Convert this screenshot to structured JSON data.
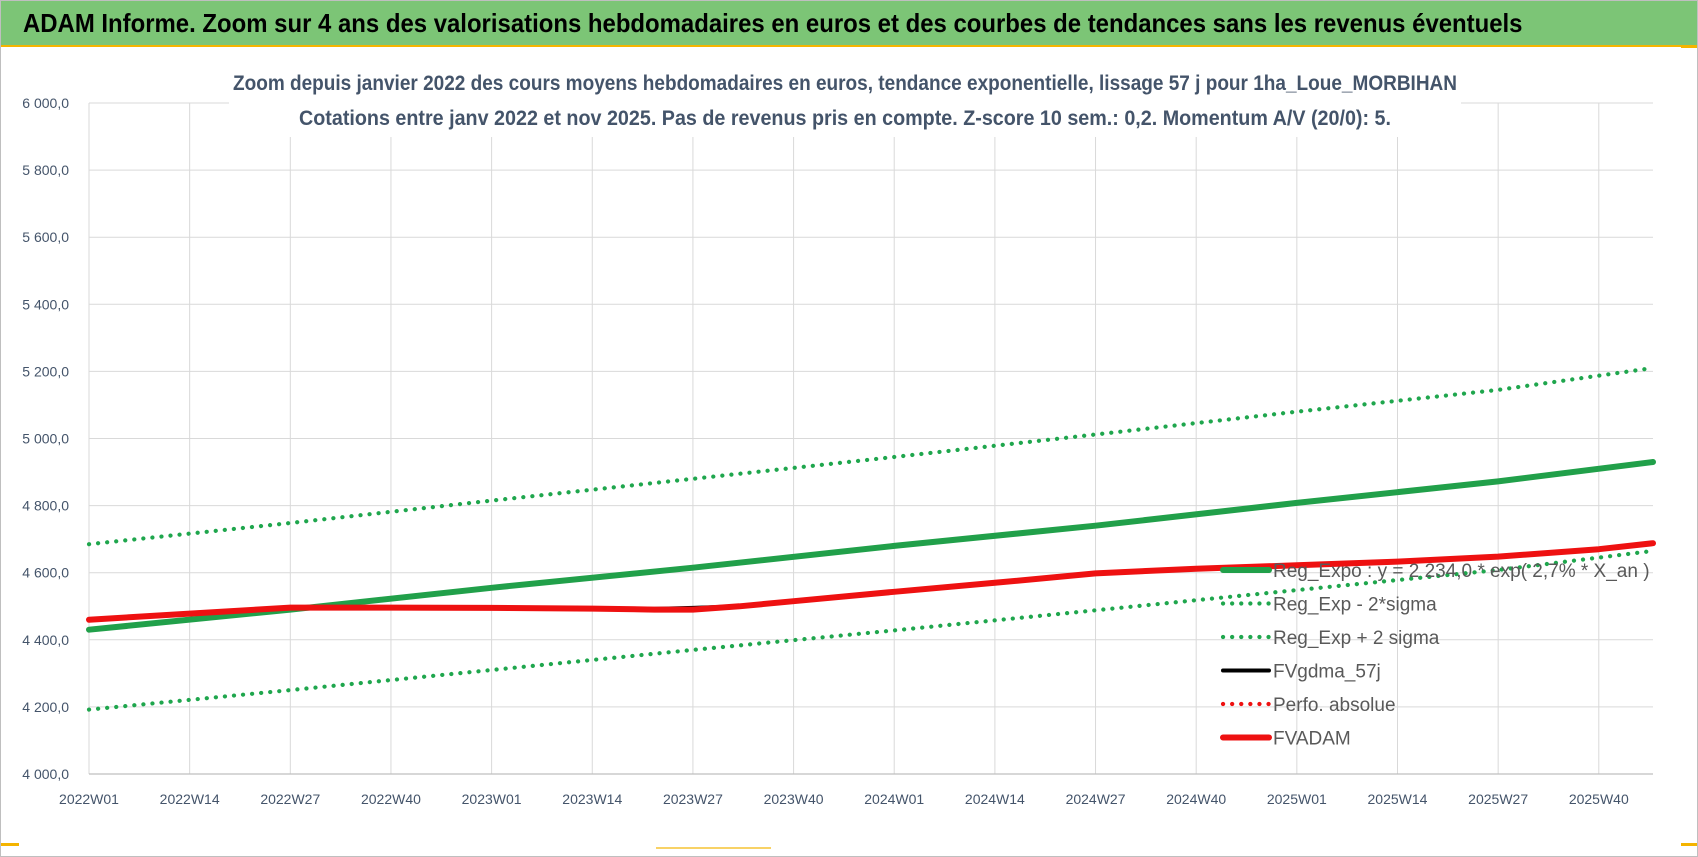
{
  "banner": {
    "title": "ADAM Informe. Zoom sur 4 ans des valorisations hebdomadaires en euros et des courbes de tendances sans les revenus éventuels"
  },
  "colors": {
    "banner_bg": "#7cc576",
    "accent": "#f4b400",
    "trend_green": "#21a04a",
    "dotted_green": "#1fa64d",
    "series_black": "#000000",
    "series_red": "#ee1111",
    "grid": "#d9d9d9",
    "text": "#44546a"
  },
  "chart_data": {
    "type": "line",
    "title": "Zoom depuis janvier 2022 des cours moyens hebdomadaires en euros, tendance exponentielle, lissage 57 j pour 1ha_Loue_MORBIHAN",
    "subtitle": "Cotations entre janv 2022 et nov 2025. Pas de revenus pris en compte. Z-score 10 sem.: 0,2. Momentum A/V (20/0): 5.",
    "xlabel": "",
    "ylabel": "",
    "x_ticks": [
      "2022W01",
      "2022W14",
      "2022W27",
      "2022W40",
      "2023W01",
      "2023W14",
      "2023W27",
      "2023W40",
      "2024W01",
      "2024W14",
      "2024W27",
      "2024W40",
      "2025W01",
      "2025W14",
      "2025W27",
      "2025W40"
    ],
    "y_ticks": [
      "4 000,0",
      "4 200,0",
      "4 400,0",
      "4 600,0",
      "4 800,0",
      "5 000,0",
      "5 200,0",
      "5 400,0",
      "5 600,0",
      "5 800,0",
      "6 000,0"
    ],
    "ylim": [
      4000,
      6000
    ],
    "x_week_range": [
      "2022W01",
      "2025W47"
    ],
    "grid": true,
    "legend_position": "right",
    "series": [
      {
        "name": "Reg_Expo : y = 2 234,0 * exp( 2,7% * X_an )",
        "style": "solid-thick",
        "color": "#21a04a",
        "points": [
          [
            "2022W01",
            4430
          ],
          [
            "2022W27",
            4490
          ],
          [
            "2023W01",
            4555
          ],
          [
            "2023W27",
            4615
          ],
          [
            "2024W01",
            4680
          ],
          [
            "2024W27",
            4740
          ],
          [
            "2025W01",
            4808
          ],
          [
            "2025W27",
            4872
          ],
          [
            "2025W47",
            4930
          ]
        ]
      },
      {
        "name": "Reg_Exp - 2*sigma",
        "style": "dotted",
        "color": "#1fa64d",
        "points": [
          [
            "2022W01",
            4192
          ],
          [
            "2022W27",
            4250
          ],
          [
            "2023W01",
            4310
          ],
          [
            "2023W27",
            4370
          ],
          [
            "2024W01",
            4428
          ],
          [
            "2024W27",
            4488
          ],
          [
            "2025W01",
            4548
          ],
          [
            "2025W27",
            4608
          ],
          [
            "2025W47",
            4665
          ]
        ]
      },
      {
        "name": "Reg_Exp + 2 sigma",
        "style": "dotted",
        "color": "#1fa64d",
        "points": [
          [
            "2022W01",
            4685
          ],
          [
            "2022W27",
            4748
          ],
          [
            "2023W01",
            4815
          ],
          [
            "2023W27",
            4880
          ],
          [
            "2024W01",
            4945
          ],
          [
            "2024W27",
            5012
          ],
          [
            "2025W01",
            5080
          ],
          [
            "2025W27",
            5145
          ],
          [
            "2025W47",
            5210
          ]
        ]
      },
      {
        "name": "FVgdma_57j",
        "style": "solid",
        "color": "#000000",
        "points": [
          [
            "2022W01",
            4460
          ],
          [
            "2022W14",
            4478
          ],
          [
            "2022W27",
            4496
          ],
          [
            "2022W40",
            4496
          ],
          [
            "2023W01",
            4495
          ],
          [
            "2023W14",
            4493
          ],
          [
            "2023W22",
            4492
          ],
          [
            "2023W27",
            4495
          ],
          [
            "2023W33",
            4500
          ],
          [
            "2023W40",
            4515
          ],
          [
            "2024W01",
            4543
          ],
          [
            "2024W14",
            4570
          ],
          [
            "2024W27",
            4598
          ],
          [
            "2024W40",
            4612
          ],
          [
            "2025W01",
            4622
          ],
          [
            "2025W14",
            4633
          ],
          [
            "2025W27",
            4648
          ],
          [
            "2025W40",
            4670
          ],
          [
            "2025W47",
            4688
          ]
        ]
      },
      {
        "name": "Perfo. absolue",
        "style": "dotted",
        "color": "#ee1111",
        "points": [
          [
            "2022W01",
            4460
          ],
          [
            "2022W14",
            4478
          ],
          [
            "2022W27",
            4496
          ],
          [
            "2022W40",
            4496
          ],
          [
            "2023W01",
            4495
          ],
          [
            "2023W14",
            4493
          ],
          [
            "2023W22",
            4490
          ],
          [
            "2023W27",
            4490
          ],
          [
            "2023W33",
            4500
          ],
          [
            "2023W40",
            4515
          ],
          [
            "2024W01",
            4543
          ],
          [
            "2024W14",
            4570
          ],
          [
            "2024W27",
            4598
          ],
          [
            "2024W40",
            4612
          ],
          [
            "2025W01",
            4622
          ],
          [
            "2025W14",
            4633
          ],
          [
            "2025W27",
            4648
          ],
          [
            "2025W40",
            4670
          ],
          [
            "2025W47",
            4688
          ]
        ]
      },
      {
        "name": "FVADAM",
        "style": "solid-thick",
        "color": "#ee1111",
        "points": [
          [
            "2022W01",
            4460
          ],
          [
            "2022W14",
            4478
          ],
          [
            "2022W27",
            4496
          ],
          [
            "2022W40",
            4496
          ],
          [
            "2023W01",
            4495
          ],
          [
            "2023W14",
            4493
          ],
          [
            "2023W22",
            4490
          ],
          [
            "2023W27",
            4490
          ],
          [
            "2023W33",
            4500
          ],
          [
            "2023W40",
            4515
          ],
          [
            "2024W01",
            4543
          ],
          [
            "2024W14",
            4570
          ],
          [
            "2024W27",
            4598
          ],
          [
            "2024W40",
            4612
          ],
          [
            "2025W01",
            4622
          ],
          [
            "2025W14",
            4633
          ],
          [
            "2025W27",
            4648
          ],
          [
            "2025W40",
            4670
          ],
          [
            "2025W47",
            4688
          ]
        ]
      }
    ]
  }
}
